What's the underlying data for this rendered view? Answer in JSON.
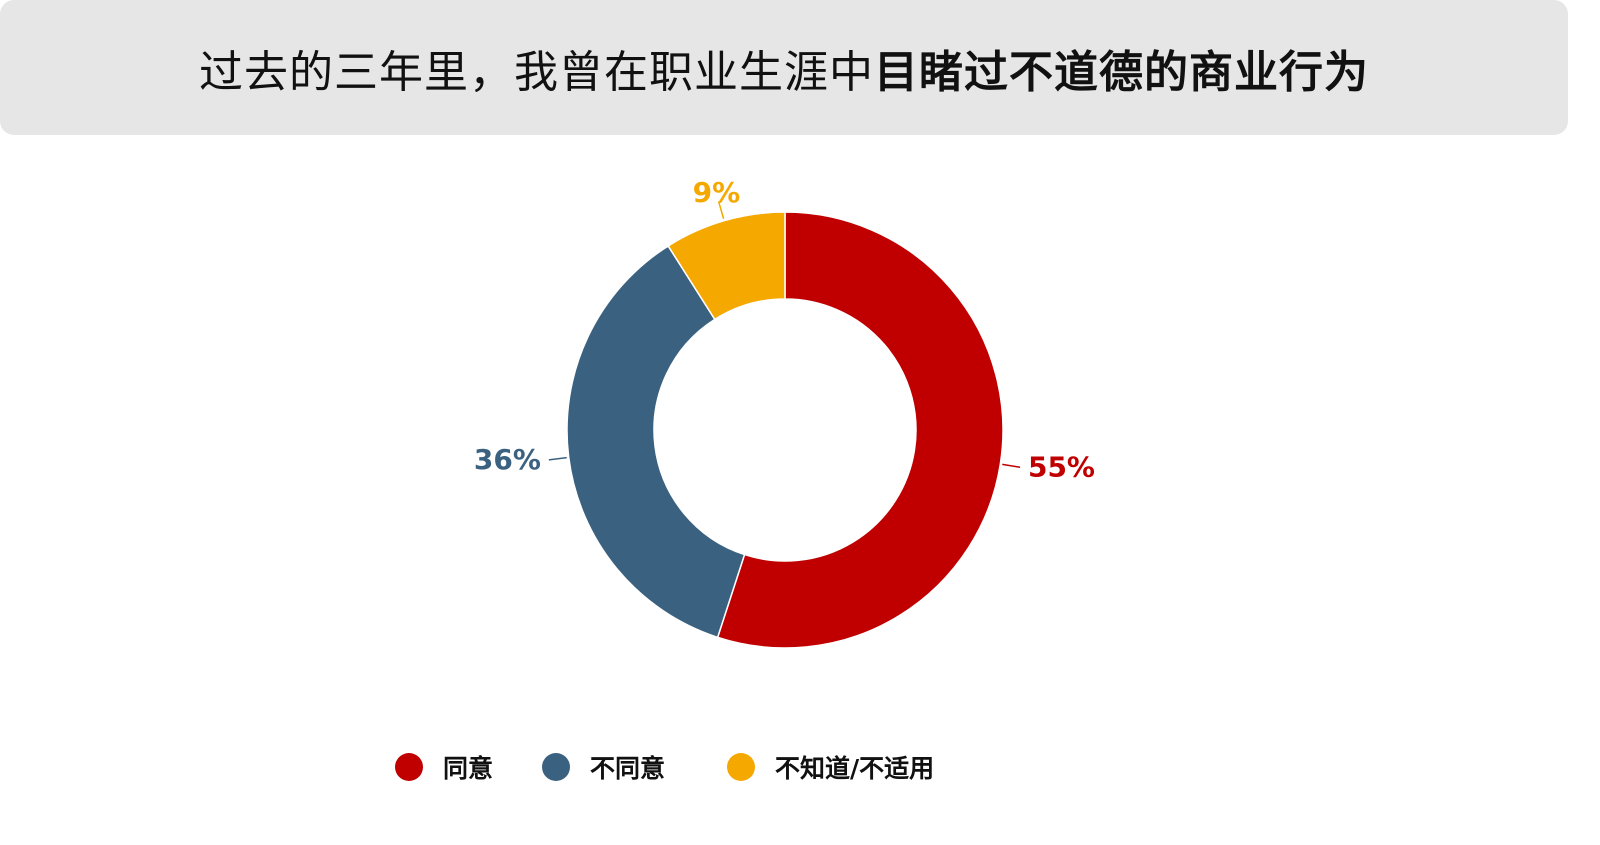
{
  "header": {
    "title_regular": "过去的三年里，我曾在职业生涯中",
    "title_bold": "目睹过不道德的商业行为"
  },
  "chart_data": {
    "type": "pie",
    "donut": true,
    "categories": [
      "同意",
      "不同意",
      "不知道/不适用"
    ],
    "values": [
      55,
      36,
      9
    ],
    "data_labels": [
      "55%",
      "36%",
      "9%"
    ],
    "colors": [
      "#c00000",
      "#3b6180",
      "#f5a800"
    ],
    "legend_position": "bottom",
    "title": "过去的三年里，我曾在职业生涯中目睹过不道德的商业行为"
  },
  "legend": {
    "items": [
      {
        "label": "同意",
        "color": "#c00000"
      },
      {
        "label": "不同意",
        "color": "#3b6180"
      },
      {
        "label": "不知道/不适用",
        "color": "#f5a800"
      }
    ]
  }
}
